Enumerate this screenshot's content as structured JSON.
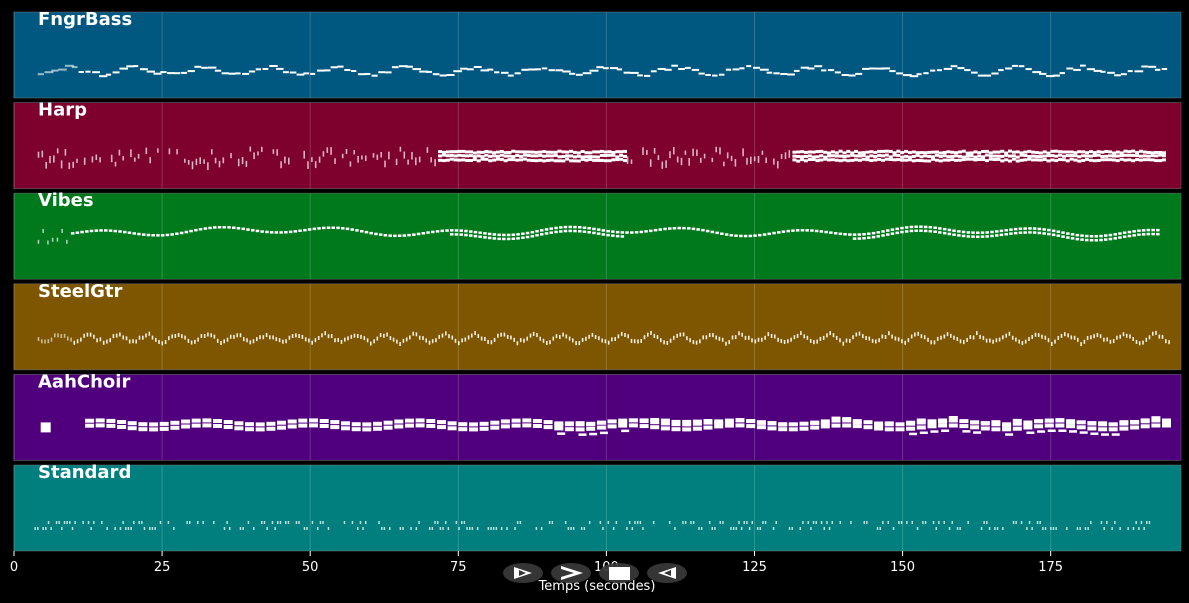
{
  "chart_data": {
    "type": "piano-roll",
    "xlabel": "Temps (secondes)",
    "xlim": [
      0,
      197
    ],
    "x_ticks": [
      0,
      25,
      50,
      75,
      100,
      125,
      150,
      175
    ],
    "tracks": [
      {
        "name": "FngrBass",
        "color": "#00577f",
        "pattern": "bass",
        "start": 4,
        "end": 194
      },
      {
        "name": "Harp",
        "color": "#7e002c",
        "pattern": "harp",
        "start": 4,
        "end": 194
      },
      {
        "name": "Vibes",
        "color": "#00791d",
        "pattern": "vibes",
        "start": 4,
        "end": 193
      },
      {
        "name": "SteelGtr",
        "color": "#7f5600",
        "pattern": "steel",
        "start": 4,
        "end": 195
      },
      {
        "name": "AahChoir",
        "color": "#50007c",
        "pattern": "choir",
        "start": 4,
        "end": 194
      },
      {
        "name": "Standard",
        "color": "#007f7e",
        "pattern": "drums",
        "start": 3,
        "end": 193
      }
    ]
  },
  "controls": {
    "play_icon": "play-outline-icon",
    "forward_icon": "chevron-right-icon",
    "stop_icon": "stop-icon",
    "rewind_icon": "rewind-outline-icon"
  }
}
